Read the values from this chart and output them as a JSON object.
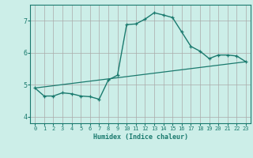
{
  "xlabel": "Humidex (Indice chaleur)",
  "ylabel": "",
  "bg_color": "#cceee8",
  "line_color": "#1a7a6e",
  "grid_color": "#aaaaaa",
  "xlim": [
    -0.5,
    23.5
  ],
  "ylim": [
    3.8,
    7.5
  ],
  "yticks": [
    4,
    5,
    6,
    7
  ],
  "xticks": [
    0,
    1,
    2,
    3,
    4,
    5,
    6,
    7,
    8,
    9,
    10,
    11,
    12,
    13,
    14,
    15,
    16,
    17,
    18,
    19,
    20,
    21,
    22,
    23
  ],
  "curve1_x": [
    0,
    1,
    2,
    3,
    4,
    5,
    6,
    7,
    8,
    9,
    10,
    11,
    12,
    13,
    14,
    15,
    16,
    17,
    18,
    19,
    20,
    21,
    22,
    23
  ],
  "curve1_y": [
    4.9,
    4.65,
    4.65,
    4.75,
    4.72,
    4.65,
    4.63,
    4.55,
    5.15,
    5.3,
    6.88,
    6.9,
    7.05,
    7.25,
    7.18,
    7.1,
    6.65,
    6.2,
    6.05,
    5.82,
    5.93,
    5.93,
    5.9,
    5.72
  ],
  "curve2_x": [
    0,
    23
  ],
  "curve2_y": [
    4.9,
    5.72
  ]
}
